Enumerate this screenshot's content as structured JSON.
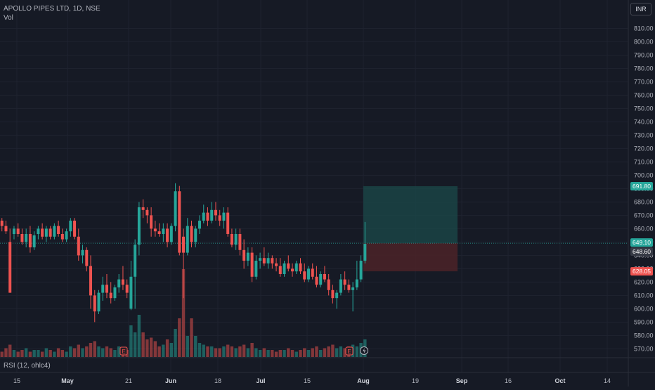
{
  "header": {
    "title": "APOLLO PIPES LTD, 1D, NSE",
    "vol_label": "Vol",
    "currency_button": "INR"
  },
  "indicator": {
    "rsi_label": "RSI (12, ohlc4)"
  },
  "colors": {
    "background": "#161a25",
    "up": "#26a69a",
    "down": "#ef5350",
    "grid": "#1f2330",
    "axis_text": "#b2b5be",
    "target_zone": "#1b4a4a",
    "stop_zone": "#4b2328"
  },
  "chart_data": {
    "type": "candlestick",
    "title": "APOLLO PIPES LTD, 1D, NSE",
    "y_axis": {
      "ticks": [
        810,
        800,
        790,
        780,
        770,
        760,
        750,
        740,
        730,
        720,
        710,
        700,
        690,
        680,
        670,
        660,
        650,
        640,
        630,
        620,
        610,
        600,
        590,
        580,
        570
      ],
      "tick_labels": [
        "810.00",
        "800.00",
        "790.00",
        "780.00",
        "770.00",
        "760.00",
        "750.00",
        "740.00",
        "730.00",
        "720.00",
        "710.00",
        "700.00",
        "690.00",
        "680.00",
        "670.00",
        "660.00",
        "650.00",
        "640.00",
        "630.00",
        "620.00",
        "610.00",
        "600.00",
        "590.00",
        "580.00",
        "570.00"
      ],
      "range": [
        566,
        816
      ]
    },
    "x_axis": {
      "tick_labels": [
        "15",
        "May",
        "21",
        "Jun",
        "18",
        "Jul",
        "15",
        "Aug",
        "19",
        "Sep",
        "16",
        "Oct",
        "14"
      ],
      "bold_labels": [
        "May",
        "Jun",
        "Jul",
        "Aug",
        "Sep",
        "Oct"
      ]
    },
    "price_labels": {
      "target": "691.80",
      "entry": "649.10",
      "last": "648.60",
      "stop": "628.05"
    },
    "position": {
      "entry": 649.1,
      "target": 691.8,
      "stop": 628.05
    },
    "earnings_markers": [
      "E",
      "E"
    ],
    "candles": [
      {
        "o": 664,
        "h": 668,
        "l": 660,
        "c": 664,
        "v": 4
      },
      {
        "o": 666,
        "h": 668,
        "l": 658,
        "c": 662,
        "v": 3
      },
      {
        "o": 662,
        "h": 666,
        "l": 656,
        "c": 658,
        "v": 5
      },
      {
        "o": 650,
        "h": 660,
        "l": 612,
        "c": 612,
        "v": 7
      },
      {
        "o": 656,
        "h": 662,
        "l": 652,
        "c": 660,
        "v": 4
      },
      {
        "o": 660,
        "h": 664,
        "l": 654,
        "c": 656,
        "v": 3
      },
      {
        "o": 656,
        "h": 660,
        "l": 648,
        "c": 650,
        "v": 4
      },
      {
        "o": 650,
        "h": 660,
        "l": 646,
        "c": 656,
        "v": 5
      },
      {
        "o": 656,
        "h": 662,
        "l": 642,
        "c": 646,
        "v": 3
      },
      {
        "o": 646,
        "h": 658,
        "l": 644,
        "c": 655,
        "v": 4
      },
      {
        "o": 656,
        "h": 662,
        "l": 652,
        "c": 660,
        "v": 4
      },
      {
        "o": 660,
        "h": 664,
        "l": 652,
        "c": 654,
        "v": 3
      },
      {
        "o": 654,
        "h": 662,
        "l": 650,
        "c": 660,
        "v": 5
      },
      {
        "o": 660,
        "h": 662,
        "l": 652,
        "c": 654,
        "v": 4
      },
      {
        "o": 654,
        "h": 664,
        "l": 652,
        "c": 662,
        "v": 3
      },
      {
        "o": 662,
        "h": 666,
        "l": 654,
        "c": 656,
        "v": 5
      },
      {
        "o": 656,
        "h": 660,
        "l": 650,
        "c": 652,
        "v": 4
      },
      {
        "o": 652,
        "h": 660,
        "l": 650,
        "c": 658,
        "v": 3
      },
      {
        "o": 658,
        "h": 668,
        "l": 654,
        "c": 666,
        "v": 6
      },
      {
        "o": 666,
        "h": 668,
        "l": 652,
        "c": 654,
        "v": 5
      },
      {
        "o": 654,
        "h": 660,
        "l": 636,
        "c": 640,
        "v": 7
      },
      {
        "o": 640,
        "h": 648,
        "l": 634,
        "c": 644,
        "v": 5
      },
      {
        "o": 644,
        "h": 646,
        "l": 628,
        "c": 632,
        "v": 6
      },
      {
        "o": 632,
        "h": 640,
        "l": 600,
        "c": 610,
        "v": 8
      },
      {
        "o": 610,
        "h": 614,
        "l": 590,
        "c": 598,
        "v": 9
      },
      {
        "o": 598,
        "h": 614,
        "l": 596,
        "c": 612,
        "v": 6
      },
      {
        "o": 612,
        "h": 624,
        "l": 606,
        "c": 618,
        "v": 5
      },
      {
        "o": 618,
        "h": 626,
        "l": 608,
        "c": 612,
        "v": 6
      },
      {
        "o": 612,
        "h": 620,
        "l": 604,
        "c": 608,
        "v": 5
      },
      {
        "o": 608,
        "h": 618,
        "l": 606,
        "c": 616,
        "v": 4
      },
      {
        "o": 616,
        "h": 626,
        "l": 612,
        "c": 622,
        "v": 6
      },
      {
        "o": 622,
        "h": 632,
        "l": 614,
        "c": 618,
        "v": 5
      },
      {
        "o": 618,
        "h": 622,
        "l": 608,
        "c": 612,
        "v": 4
      },
      {
        "o": 600,
        "h": 636,
        "l": 599,
        "c": 624,
        "v": 18
      },
      {
        "o": 624,
        "h": 652,
        "l": 600,
        "c": 648,
        "v": 14
      },
      {
        "o": 648,
        "h": 680,
        "l": 640,
        "c": 676,
        "v": 24
      },
      {
        "o": 676,
        "h": 682,
        "l": 668,
        "c": 674,
        "v": 14
      },
      {
        "o": 674,
        "h": 676,
        "l": 664,
        "c": 670,
        "v": 10
      },
      {
        "o": 670,
        "h": 676,
        "l": 654,
        "c": 660,
        "v": 11
      },
      {
        "o": 660,
        "h": 666,
        "l": 654,
        "c": 658,
        "v": 9
      },
      {
        "o": 658,
        "h": 664,
        "l": 654,
        "c": 656,
        "v": 6
      },
      {
        "o": 656,
        "h": 664,
        "l": 650,
        "c": 660,
        "v": 7
      },
      {
        "o": 660,
        "h": 664,
        "l": 646,
        "c": 650,
        "v": 10
      },
      {
        "o": 650,
        "h": 664,
        "l": 648,
        "c": 662,
        "v": 8
      },
      {
        "o": 662,
        "h": 694,
        "l": 658,
        "c": 688,
        "v": 16
      },
      {
        "o": 688,
        "h": 692,
        "l": 640,
        "c": 642,
        "v": 22
      },
      {
        "o": 654,
        "h": 660,
        "l": 608,
        "c": 642,
        "v": 50
      },
      {
        "o": 642,
        "h": 668,
        "l": 640,
        "c": 662,
        "v": 12
      },
      {
        "o": 662,
        "h": 666,
        "l": 646,
        "c": 650,
        "v": 22
      },
      {
        "o": 650,
        "h": 662,
        "l": 646,
        "c": 660,
        "v": 12
      },
      {
        "o": 660,
        "h": 670,
        "l": 656,
        "c": 666,
        "v": 8
      },
      {
        "o": 666,
        "h": 678,
        "l": 664,
        "c": 672,
        "v": 7
      },
      {
        "o": 672,
        "h": 676,
        "l": 662,
        "c": 666,
        "v": 6
      },
      {
        "o": 666,
        "h": 680,
        "l": 664,
        "c": 674,
        "v": 6
      },
      {
        "o": 674,
        "h": 680,
        "l": 666,
        "c": 670,
        "v": 5
      },
      {
        "o": 670,
        "h": 674,
        "l": 662,
        "c": 666,
        "v": 5
      },
      {
        "o": 666,
        "h": 676,
        "l": 660,
        "c": 672,
        "v": 6
      },
      {
        "o": 672,
        "h": 676,
        "l": 654,
        "c": 656,
        "v": 7
      },
      {
        "o": 656,
        "h": 660,
        "l": 646,
        "c": 648,
        "v": 6
      },
      {
        "o": 648,
        "h": 660,
        "l": 644,
        "c": 656,
        "v": 5
      },
      {
        "o": 656,
        "h": 660,
        "l": 640,
        "c": 644,
        "v": 6
      },
      {
        "o": 644,
        "h": 652,
        "l": 630,
        "c": 636,
        "v": 7
      },
      {
        "o": 636,
        "h": 646,
        "l": 632,
        "c": 642,
        "v": 5
      },
      {
        "o": 642,
        "h": 646,
        "l": 620,
        "c": 624,
        "v": 8
      },
      {
        "o": 624,
        "h": 640,
        "l": 622,
        "c": 636,
        "v": 5
      },
      {
        "o": 636,
        "h": 642,
        "l": 630,
        "c": 638,
        "v": 4
      },
      {
        "o": 638,
        "h": 646,
        "l": 632,
        "c": 634,
        "v": 5
      },
      {
        "o": 634,
        "h": 642,
        "l": 630,
        "c": 638,
        "v": 4
      },
      {
        "o": 638,
        "h": 640,
        "l": 630,
        "c": 634,
        "v": 4
      },
      {
        "o": 634,
        "h": 638,
        "l": 628,
        "c": 632,
        "v": 3
      },
      {
        "o": 632,
        "h": 638,
        "l": 624,
        "c": 626,
        "v": 4
      },
      {
        "o": 626,
        "h": 636,
        "l": 624,
        "c": 634,
        "v": 4
      },
      {
        "o": 634,
        "h": 640,
        "l": 628,
        "c": 630,
        "v": 5
      },
      {
        "o": 630,
        "h": 634,
        "l": 624,
        "c": 628,
        "v": 4
      },
      {
        "o": 628,
        "h": 636,
        "l": 626,
        "c": 634,
        "v": 3
      },
      {
        "o": 634,
        "h": 638,
        "l": 626,
        "c": 628,
        "v": 4
      },
      {
        "o": 628,
        "h": 634,
        "l": 620,
        "c": 622,
        "v": 5
      },
      {
        "o": 622,
        "h": 632,
        "l": 620,
        "c": 630,
        "v": 4
      },
      {
        "o": 630,
        "h": 634,
        "l": 622,
        "c": 624,
        "v": 5
      },
      {
        "o": 624,
        "h": 632,
        "l": 616,
        "c": 618,
        "v": 6
      },
      {
        "o": 618,
        "h": 628,
        "l": 616,
        "c": 626,
        "v": 4
      },
      {
        "o": 626,
        "h": 632,
        "l": 620,
        "c": 622,
        "v": 5
      },
      {
        "o": 622,
        "h": 626,
        "l": 610,
        "c": 614,
        "v": 6
      },
      {
        "o": 614,
        "h": 618,
        "l": 604,
        "c": 608,
        "v": 7
      },
      {
        "o": 608,
        "h": 614,
        "l": 600,
        "c": 612,
        "v": 5
      },
      {
        "o": 612,
        "h": 626,
        "l": 610,
        "c": 622,
        "v": 6
      },
      {
        "o": 622,
        "h": 628,
        "l": 614,
        "c": 618,
        "v": 5
      },
      {
        "o": 618,
        "h": 622,
        "l": 612,
        "c": 614,
        "v": 6
      },
      {
        "o": 614,
        "h": 620,
        "l": 598,
        "c": 616,
        "v": 7
      },
      {
        "o": 616,
        "h": 636,
        "l": 614,
        "c": 622,
        "v": 6
      },
      {
        "o": 622,
        "h": 640,
        "l": 620,
        "c": 636,
        "v": 8
      },
      {
        "o": 636,
        "h": 665,
        "l": 634,
        "c": 648.6,
        "v": 10
      }
    ]
  }
}
